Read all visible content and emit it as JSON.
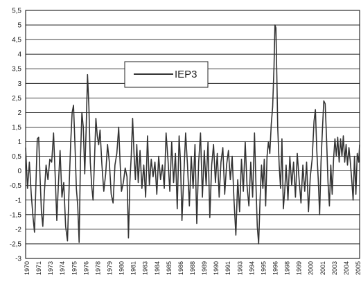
{
  "chart_data": {
    "type": "line",
    "title": "",
    "xlabel": "",
    "ylabel": "",
    "ylim": [
      -3,
      5.5
    ],
    "yticks": [
      "5,5",
      "5",
      "4,5",
      "4",
      "3,5",
      "3",
      "2,5",
      "2",
      "1,5",
      "1",
      "0,5",
      "0",
      "-0,5",
      "-1",
      "-1,5",
      "-2",
      "-2,5",
      "-3"
    ],
    "xticks": [
      "1970",
      "1971",
      "1973",
      "1974",
      "1975",
      "1976",
      "1978",
      "1979",
      "1980",
      "1981",
      "1983",
      "1984",
      "1985",
      "1986",
      "1988",
      "1989",
      "1990",
      "1991",
      "1993",
      "1994",
      "1995",
      "1996",
      "1998",
      "1999",
      "2000",
      "2001",
      "2003",
      "2004",
      "2005"
    ],
    "xlim": [
      1970.0,
      2005.9
    ],
    "grid": "horizontal",
    "legend_position": "upper-left",
    "series": [
      {
        "name": "IEP3",
        "color": "#333333",
        "points": [
          [
            1970.0,
            0.8
          ],
          [
            1970.2,
            -0.6
          ],
          [
            1970.4,
            0.3
          ],
          [
            1970.6,
            -0.8
          ],
          [
            1970.8,
            -1.6
          ],
          [
            1970.95,
            -2.1
          ],
          [
            1971.1,
            -0.5
          ],
          [
            1971.25,
            1.1
          ],
          [
            1971.4,
            1.15
          ],
          [
            1971.55,
            -0.2
          ],
          [
            1971.7,
            -1.4
          ],
          [
            1971.85,
            -1.9
          ],
          [
            1972.0,
            -0.8
          ],
          [
            1972.2,
            0.2
          ],
          [
            1972.4,
            -0.3
          ],
          [
            1972.6,
            0.4
          ],
          [
            1972.8,
            0.3
          ],
          [
            1973.0,
            1.3
          ],
          [
            1973.2,
            -0.4
          ],
          [
            1973.35,
            -1.7
          ],
          [
            1973.5,
            -0.6
          ],
          [
            1973.7,
            0.7
          ],
          [
            1973.9,
            -0.9
          ],
          [
            1974.1,
            -0.4
          ],
          [
            1974.3,
            -1.9
          ],
          [
            1974.5,
            -2.4
          ],
          [
            1974.7,
            -0.3
          ],
          [
            1974.85,
            1.0
          ],
          [
            1975.0,
            2.0
          ],
          [
            1975.15,
            2.25
          ],
          [
            1975.3,
            0.9
          ],
          [
            1975.45,
            -0.6
          ],
          [
            1975.6,
            -1.2
          ],
          [
            1975.75,
            -2.45
          ],
          [
            1975.9,
            0.5
          ],
          [
            1976.05,
            2.0
          ],
          [
            1976.2,
            1.5
          ],
          [
            1976.35,
            -0.1
          ],
          [
            1976.5,
            1.4
          ],
          [
            1976.65,
            3.3
          ],
          [
            1976.8,
            2.2
          ],
          [
            1976.95,
            0.3
          ],
          [
            1977.1,
            -0.5
          ],
          [
            1977.25,
            -1.0
          ],
          [
            1977.4,
            0.4
          ],
          [
            1977.55,
            1.8
          ],
          [
            1977.7,
            1.2
          ],
          [
            1977.85,
            0.9
          ],
          [
            1978.0,
            1.4
          ],
          [
            1978.2,
            0.2
          ],
          [
            1978.4,
            -0.7
          ],
          [
            1978.6,
            -0.1
          ],
          [
            1978.8,
            0.9
          ],
          [
            1979.0,
            0.3
          ],
          [
            1979.2,
            -0.8
          ],
          [
            1979.4,
            -1.1
          ],
          [
            1979.6,
            0.2
          ],
          [
            1979.8,
            0.6
          ],
          [
            1980.0,
            1.5
          ],
          [
            1980.15,
            0.3
          ],
          [
            1980.3,
            -0.7
          ],
          [
            1980.5,
            -0.4
          ],
          [
            1980.7,
            0.1
          ],
          [
            1980.9,
            -0.2
          ],
          [
            1981.05,
            -2.3
          ],
          [
            1981.2,
            -0.4
          ],
          [
            1981.35,
            0.5
          ],
          [
            1981.5,
            1.8
          ],
          [
            1981.65,
            0.6
          ],
          [
            1981.8,
            -0.3
          ],
          [
            1981.95,
            0.9
          ],
          [
            1982.1,
            -0.4
          ],
          [
            1982.3,
            0.7
          ],
          [
            1982.5,
            -0.6
          ],
          [
            1982.7,
            0.2
          ],
          [
            1982.9,
            -0.9
          ],
          [
            1983.1,
            1.2
          ],
          [
            1983.3,
            -0.5
          ],
          [
            1983.5,
            0.4
          ],
          [
            1983.7,
            -0.2
          ],
          [
            1983.9,
            0.3
          ],
          [
            1984.1,
            -0.8
          ],
          [
            1984.3,
            0.5
          ],
          [
            1984.5,
            -0.3
          ],
          [
            1984.7,
            0.2
          ],
          [
            1984.9,
            -0.6
          ],
          [
            1985.1,
            1.3
          ],
          [
            1985.3,
            0.4
          ],
          [
            1985.5,
            -0.7
          ],
          [
            1985.7,
            1.0
          ],
          [
            1985.9,
            -0.4
          ],
          [
            1986.1,
            0.6
          ],
          [
            1986.3,
            -1.3
          ],
          [
            1986.5,
            1.2
          ],
          [
            1986.65,
            0.3
          ],
          [
            1986.8,
            -1.7
          ],
          [
            1987.0,
            -0.2
          ],
          [
            1987.2,
            1.3
          ],
          [
            1987.4,
            0.2
          ],
          [
            1987.6,
            -1.2
          ],
          [
            1987.8,
            0.5
          ],
          [
            1988.0,
            -0.6
          ],
          [
            1988.2,
            0.9
          ],
          [
            1988.4,
            -1.8
          ],
          [
            1988.6,
            0.3
          ],
          [
            1988.8,
            1.3
          ],
          [
            1989.0,
            -0.9
          ],
          [
            1989.2,
            0.7
          ],
          [
            1989.4,
            -0.5
          ],
          [
            1989.6,
            1.0
          ],
          [
            1989.8,
            -1.6
          ],
          [
            1990.0,
            0.2
          ],
          [
            1990.2,
            0.9
          ],
          [
            1990.4,
            -0.4
          ],
          [
            1990.6,
            0.6
          ],
          [
            1990.8,
            -0.9
          ],
          [
            1991.0,
            0.3
          ],
          [
            1991.2,
            0.8
          ],
          [
            1991.4,
            -0.8
          ],
          [
            1991.6,
            0.2
          ],
          [
            1991.8,
            0.7
          ],
          [
            1992.0,
            -0.3
          ],
          [
            1992.2,
            0.5
          ],
          [
            1992.4,
            -1.0
          ],
          [
            1992.6,
            -2.2
          ],
          [
            1992.8,
            -0.3
          ],
          [
            1993.0,
            -1.4
          ],
          [
            1993.2,
            0.4
          ],
          [
            1993.4,
            -0.7
          ],
          [
            1993.6,
            1.0
          ],
          [
            1993.8,
            -0.5
          ],
          [
            1994.0,
            -1.2
          ],
          [
            1994.2,
            0.3
          ],
          [
            1994.4,
            -0.9
          ],
          [
            1994.6,
            1.3
          ],
          [
            1994.75,
            -0.4
          ],
          [
            1994.9,
            -1.9
          ],
          [
            1995.05,
            -2.5
          ],
          [
            1995.2,
            -1.0
          ],
          [
            1995.35,
            0.2
          ],
          [
            1995.5,
            -0.6
          ],
          [
            1995.65,
            0.4
          ],
          [
            1995.8,
            -1.2
          ],
          [
            1995.95,
            0.5
          ],
          [
            1996.1,
            1.0
          ],
          [
            1996.25,
            0.6
          ],
          [
            1996.4,
            1.6
          ],
          [
            1996.55,
            2.2
          ],
          [
            1996.7,
            3.6
          ],
          [
            1996.8,
            5.0
          ],
          [
            1996.9,
            4.9
          ],
          [
            1997.0,
            3.3
          ],
          [
            1997.1,
            1.5
          ],
          [
            1997.25,
            0.2
          ],
          [
            1997.4,
            -0.6
          ],
          [
            1997.55,
            1.1
          ],
          [
            1997.7,
            -1.3
          ],
          [
            1997.85,
            -0.7
          ],
          [
            1998.0,
            0.2
          ],
          [
            1998.2,
            -1.0
          ],
          [
            1998.4,
            0.5
          ],
          [
            1998.6,
            -0.5
          ],
          [
            1998.8,
            0.3
          ],
          [
            1999.0,
            -0.9
          ],
          [
            1999.2,
            0.6
          ],
          [
            1999.4,
            -0.3
          ],
          [
            1999.6,
            -1.1
          ],
          [
            1999.8,
            0.2
          ],
          [
            2000.0,
            -0.7
          ],
          [
            2000.2,
            0.3
          ],
          [
            2000.4,
            -1.4
          ],
          [
            2000.6,
            -0.2
          ],
          [
            2000.8,
            0.4
          ],
          [
            2001.0,
            1.7
          ],
          [
            2001.15,
            2.1
          ],
          [
            2001.3,
            0.7
          ],
          [
            2001.45,
            -0.3
          ],
          [
            2001.6,
            -1.5
          ],
          [
            2001.75,
            0.3
          ],
          [
            2001.9,
            1.4
          ],
          [
            2002.05,
            2.4
          ],
          [
            2002.2,
            2.3
          ],
          [
            2002.35,
            1.1
          ],
          [
            2002.5,
            -0.4
          ],
          [
            2002.65,
            -1.2
          ],
          [
            2002.8,
            0.2
          ],
          [
            2002.95,
            -0.8
          ],
          [
            2003.1,
            0.4
          ],
          [
            2003.25,
            1.1
          ],
          [
            2003.4,
            0.5
          ],
          [
            2003.55,
            1.15
          ],
          [
            2003.7,
            0.3
          ],
          [
            2003.85,
            1.1
          ],
          [
            2004.0,
            0.5
          ],
          [
            2004.15,
            1.2
          ],
          [
            2004.3,
            0.3
          ],
          [
            2004.45,
            0.9
          ],
          [
            2004.6,
            0.2
          ],
          [
            2004.75,
            0.8
          ],
          [
            2004.9,
            0.3
          ],
          [
            2005.05,
            -0.3
          ],
          [
            2005.2,
            -1.0
          ],
          [
            2005.35,
            0.5
          ],
          [
            2005.5,
            -0.8
          ],
          [
            2005.65,
            0.6
          ],
          [
            2005.8,
            0.3
          ],
          [
            2005.9,
            0.9
          ]
        ]
      }
    ]
  }
}
